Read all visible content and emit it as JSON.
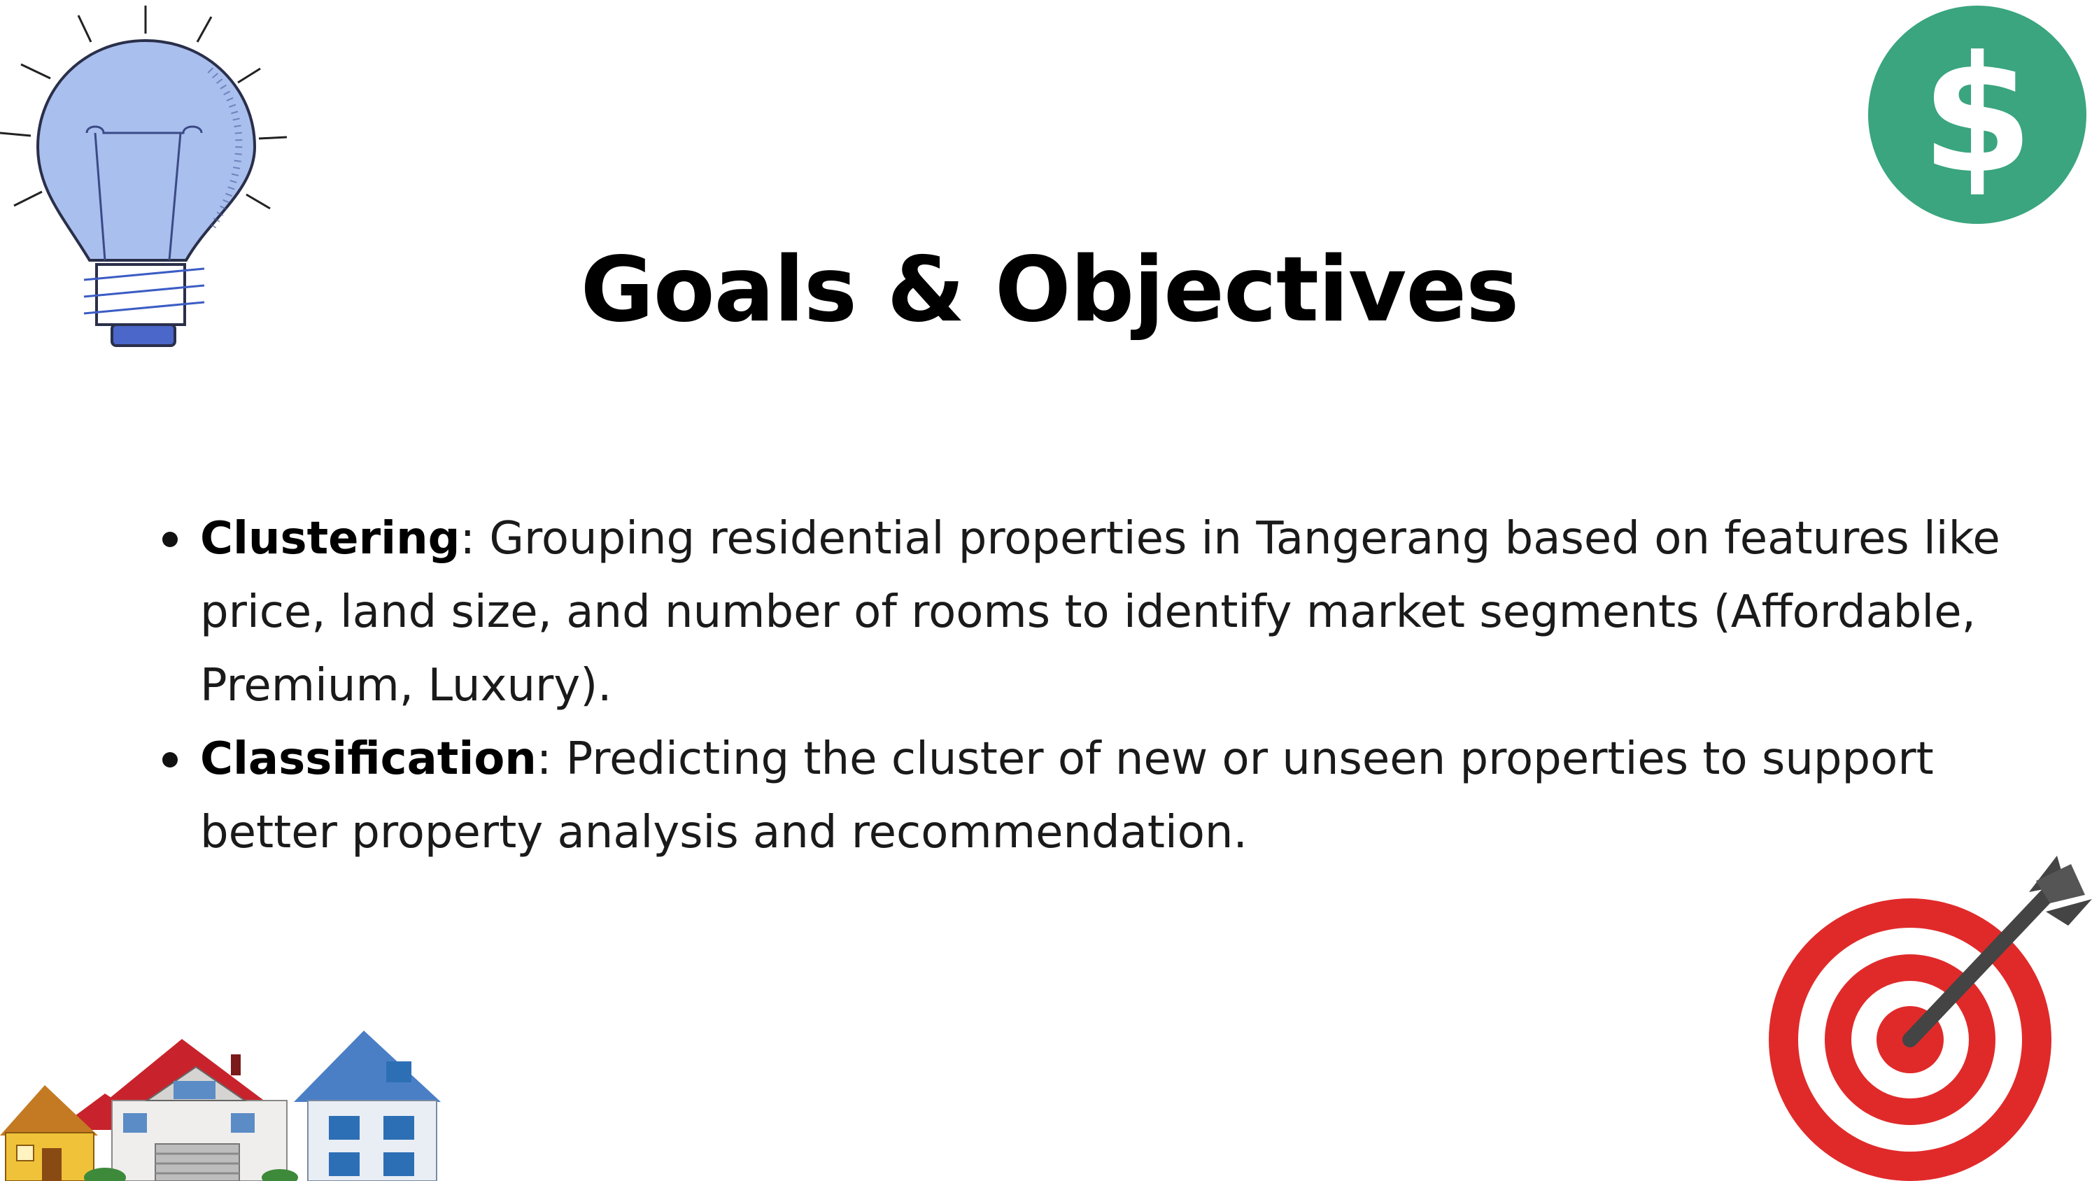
{
  "slide": {
    "title": "Goals & Objectives",
    "bullets": [
      {
        "term": "Clustering",
        "text": ": Grouping residential properties in Tangerang based on features like price, land size, and number of rooms to identify market segments (Affordable, Premium, Luxury)."
      },
      {
        "term": "Classification",
        "text": ": Predicting the cluster of new or unseen properties to support better property analysis and recommendation."
      }
    ]
  },
  "icons": {
    "top_left": "lightbulb-icon",
    "top_right": "dollar-icon",
    "bottom_right": "target-arrow-icon",
    "bottom_left": "houses-icon"
  },
  "colors": {
    "bulb_fill": "#a9bfee",
    "dollar_circle": "#3aa57f",
    "target_red": "#e02a2a",
    "arrow_gray": "#444444"
  }
}
